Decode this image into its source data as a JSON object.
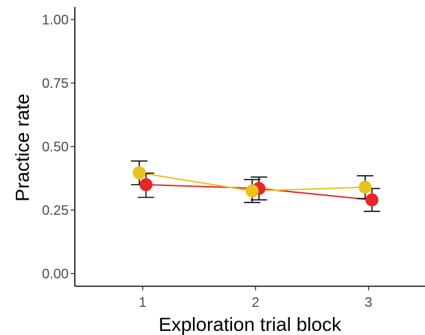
{
  "chart_data": {
    "type": "line",
    "title": "",
    "xlabel": "Exploration trial block",
    "ylabel": "Practice rate",
    "x": [
      1,
      2,
      3
    ],
    "xticks": [
      "1",
      "2",
      "3"
    ],
    "xlim": [
      0.4,
      3.5
    ],
    "ylim": [
      -0.05,
      1.05
    ],
    "yticks": [
      {
        "value": 0.0,
        "label": "0.00"
      },
      {
        "value": 0.25,
        "label": "0.25"
      },
      {
        "value": 0.5,
        "label": "0.50"
      },
      {
        "value": 0.75,
        "label": "0.75"
      },
      {
        "value": 1.0,
        "label": "1.00"
      }
    ],
    "grid": false,
    "legend": "none",
    "series": [
      {
        "color": "#e8262a",
        "x_offset": 0.03,
        "values": [
          0.35,
          0.335,
          0.29
        ],
        "err_low": [
          0.3,
          0.29,
          0.245
        ],
        "err_high": [
          0.395,
          0.38,
          0.335
        ]
      },
      {
        "color": "#e9c21b",
        "x_offset": -0.03,
        "values": [
          0.397,
          0.325,
          0.34
        ],
        "err_low": [
          0.35,
          0.28,
          0.295
        ],
        "err_high": [
          0.443,
          0.37,
          0.385
        ]
      }
    ]
  }
}
